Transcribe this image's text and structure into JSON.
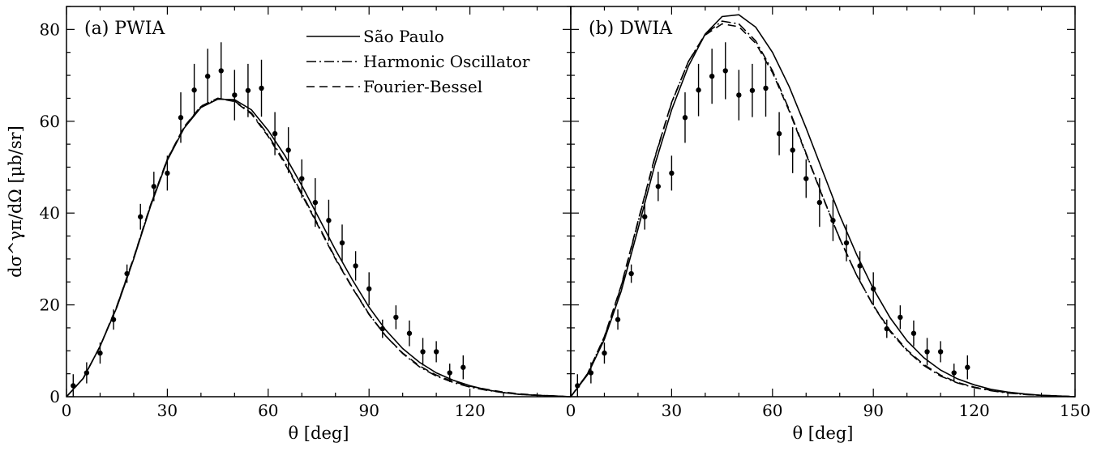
{
  "chart_data": [
    {
      "type": "line",
      "panel_label": "(a) PWIA",
      "xlabel": "θ [deg]",
      "ylabel": "dσ^γπ/dΩ [μb/sr]",
      "xlim": [
        0,
        150
      ],
      "ylim": [
        0,
        85
      ],
      "x_ticks": [
        0,
        30,
        60,
        90,
        120
      ],
      "y_ticks": [
        0,
        20,
        40,
        60,
        80
      ],
      "legend_position": "top-center",
      "series": [
        {
          "name": "São Paulo",
          "style": "solid",
          "x": [
            0,
            5,
            10,
            15,
            20,
            25,
            30,
            35,
            40,
            45,
            50,
            55,
            60,
            65,
            70,
            75,
            80,
            85,
            90,
            95,
            100,
            105,
            110,
            115,
            120,
            125,
            130,
            135,
            140,
            145,
            150
          ],
          "y": [
            0,
            4,
            11,
            19.5,
            30,
            41.5,
            51.5,
            58.5,
            63,
            64.8,
            64.7,
            62.5,
            58,
            52.5,
            46,
            39,
            32,
            25.5,
            19.5,
            14.5,
            10.5,
            7.5,
            5.2,
            3.6,
            2.4,
            1.5,
            0.9,
            0.5,
            0.3,
            0.15,
            0
          ]
        },
        {
          "name": "Harmonic Oscillator",
          "style": "dashdot",
          "x": [
            0,
            5,
            10,
            15,
            20,
            25,
            30,
            35,
            40,
            45,
            50,
            55,
            60,
            65,
            70,
            75,
            80,
            85,
            90,
            95,
            100,
            105,
            110,
            115,
            120,
            125,
            130,
            135,
            140,
            145,
            150
          ],
          "y": [
            0,
            4,
            11,
            19.7,
            30.2,
            41.7,
            51.7,
            58.7,
            63.2,
            65,
            64.4,
            61.8,
            57,
            51,
            44.3,
            37.2,
            30.2,
            23.8,
            18,
            13.2,
            9.4,
            6.5,
            4.5,
            3.1,
            2.1,
            1.4,
            0.9,
            0.5,
            0.3,
            0.15,
            0
          ]
        },
        {
          "name": "Fourier-Bessel",
          "style": "dashed",
          "x": [
            0,
            5,
            10,
            15,
            20,
            25,
            30,
            35,
            40,
            45,
            50,
            55,
            60,
            65,
            70,
            75,
            80,
            85,
            90,
            95,
            100,
            105,
            110,
            115,
            120,
            125,
            130,
            135,
            140,
            145,
            150
          ],
          "y": [
            0,
            4,
            11,
            19.8,
            30.3,
            41.8,
            51.8,
            58.8,
            63.3,
            65,
            64.3,
            61.6,
            56.7,
            50.7,
            44,
            37,
            30,
            23.7,
            17.9,
            13.2,
            9.5,
            6.7,
            4.7,
            3.3,
            2.3,
            1.6,
            1,
            0.6,
            0.35,
            0.15,
            0
          ]
        }
      ],
      "data_points": {
        "x": [
          2,
          6,
          10,
          14,
          18,
          22,
          26,
          30,
          34,
          38,
          42,
          46,
          50,
          54,
          58,
          62,
          66,
          70,
          74,
          78,
          82,
          86,
          90,
          94,
          98,
          102,
          106,
          110,
          114,
          118
        ],
        "y": [
          2.4,
          5.2,
          9.5,
          16.8,
          26.8,
          39.2,
          45.8,
          48.7,
          60.8,
          66.8,
          69.8,
          71,
          65.7,
          66.7,
          67.2,
          57.3,
          53.7,
          47.5,
          42.3,
          38.4,
          33.5,
          28.5,
          23.5,
          14.8,
          17.3,
          13.8,
          9.8,
          9.8,
          5.2,
          6.4
        ],
        "err": [
          2.5,
          2.3,
          2.3,
          2.2,
          2,
          2.8,
          3.2,
          3.8,
          5.5,
          5.7,
          6,
          6.2,
          5.5,
          5.8,
          6.2,
          4.7,
          5,
          4.2,
          5.3,
          4.5,
          4,
          3.2,
          3.6,
          2,
          2.6,
          2.8,
          3,
          2.3,
          2,
          2.6
        ]
      }
    },
    {
      "type": "line",
      "panel_label": "(b) DWIA",
      "xlabel": "θ [deg]",
      "ylabel": "",
      "xlim": [
        0,
        150
      ],
      "ylim": [
        0,
        85
      ],
      "x_ticks": [
        0,
        30,
        60,
        90,
        120,
        150
      ],
      "y_ticks": [
        0,
        20,
        40,
        60,
        80
      ],
      "series": [
        {
          "name": "São Paulo",
          "style": "solid",
          "x": [
            0,
            5,
            10,
            15,
            20,
            25,
            30,
            35,
            40,
            45,
            50,
            55,
            60,
            65,
            70,
            75,
            80,
            85,
            90,
            95,
            100,
            105,
            110,
            115,
            120,
            125,
            130,
            135,
            140,
            145,
            150
          ],
          "y": [
            0,
            4.8,
            12.5,
            23,
            36.5,
            50.5,
            62.5,
            72,
            79,
            82.8,
            83.2,
            80.5,
            75,
            67.5,
            58.5,
            49,
            39.5,
            31,
            23.5,
            17.2,
            12.2,
            8.5,
            5.8,
            3.9,
            2.6,
            1.6,
            1,
            0.6,
            0.3,
            0.15,
            0
          ]
        },
        {
          "name": "Harmonic Oscillator",
          "style": "dashdot",
          "x": [
            0,
            5,
            10,
            15,
            20,
            25,
            30,
            35,
            40,
            45,
            50,
            55,
            60,
            65,
            70,
            75,
            80,
            85,
            90,
            95,
            100,
            105,
            110,
            115,
            120,
            125,
            130,
            135,
            140,
            145,
            150
          ],
          "y": [
            0,
            5,
            13,
            24,
            38,
            52,
            64,
            73,
            79,
            81.8,
            81.2,
            77.5,
            71,
            62.5,
            53,
            43.5,
            34.5,
            26.5,
            19.8,
            14.2,
            10,
            6.8,
            4.5,
            3,
            2,
            1.3,
            0.8,
            0.5,
            0.3,
            0.15,
            0
          ]
        },
        {
          "name": "Fourier-Bessel",
          "style": "dashed",
          "x": [
            0,
            5,
            10,
            15,
            20,
            25,
            30,
            35,
            40,
            45,
            50,
            55,
            60,
            65,
            70,
            75,
            80,
            85,
            90,
            95,
            100,
            105,
            110,
            115,
            120,
            125,
            130,
            135,
            140,
            145,
            150
          ],
          "y": [
            0,
            5,
            13.1,
            24.2,
            38.2,
            52.2,
            64.1,
            73,
            78.8,
            81.2,
            80.6,
            77,
            70.6,
            62.2,
            52.8,
            43.4,
            34.4,
            26.5,
            19.9,
            14.4,
            10.2,
            7,
            4.7,
            3.1,
            2.1,
            1.4,
            0.9,
            0.5,
            0.3,
            0.15,
            0
          ]
        }
      ],
      "data_points": {
        "x": [
          2,
          6,
          10,
          14,
          18,
          22,
          26,
          30,
          34,
          38,
          42,
          46,
          50,
          54,
          58,
          62,
          66,
          70,
          74,
          78,
          82,
          86,
          90,
          94,
          98,
          102,
          106,
          110,
          114,
          118
        ],
        "y": [
          2.4,
          5.2,
          9.5,
          16.8,
          26.8,
          39.2,
          45.8,
          48.7,
          60.8,
          66.8,
          69.8,
          71,
          65.7,
          66.7,
          67.2,
          57.3,
          53.7,
          47.5,
          42.3,
          38.4,
          33.5,
          28.5,
          23.5,
          14.8,
          17.3,
          13.8,
          9.8,
          9.8,
          5.2,
          6.4
        ],
        "err": [
          2.5,
          2.3,
          2.3,
          2.2,
          2,
          2.8,
          3.2,
          3.8,
          5.5,
          5.7,
          6,
          6.2,
          5.5,
          5.8,
          6.2,
          4.7,
          5,
          4.2,
          5.3,
          4.5,
          4,
          3.2,
          3.6,
          2,
          2.6,
          2.8,
          3,
          2.3,
          2,
          2.6
        ]
      }
    }
  ]
}
